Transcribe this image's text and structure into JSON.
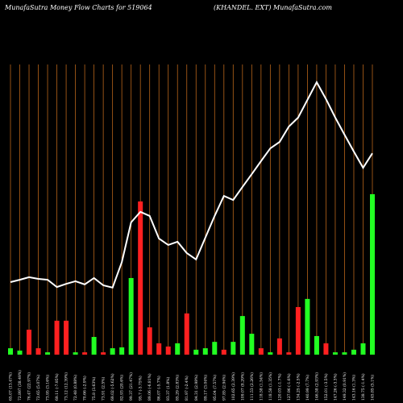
{
  "chart_data": {
    "type": "bar",
    "title": "MunafaSutra  Money Flow  Charts for 519064",
    "subtitle": "(KHANDEL. EXT) MunafaSutra.com",
    "categories": [
      "65.07 (13.47%)",
      "72.897 (38.49%)",
      "76.47 (22.97%)",
      "72.65 (5.07%)",
      "73.95 (3.16%)",
      "69.11 (-7.95%)",
      "73.12 (12.39%)",
      "72.48 (0.88%)",
      "70.66 (-2.9%)",
      "75.8 (3.63%)",
      "73.91 (2.5%)",
      "69.02 (-5.62%)",
      "82.93 (20.6%)",
      "99.37 (21.47%)",
      "95.7 (-3.75%)",
      "89.06 (-6.81%)",
      "86.07 (-5.7%)",
      "83.37 (1.8%)",
      "85.29 (2.83%)",
      "81.97 (-2.4%)",
      "84.31 (2.98%)",
      "89.17 (3.04%)",
      "95.04 (7.57%)",
      "97.85 (2.94%)",
      "102.65 (2.39%)",
      "109.07 (8.29%)",
      "111.53 (2.26%)",
      "118.58 (1.54%)",
      "118.58 (1.35%)",
      "120.03 (-1.7%)",
      "127.96 (-1.6%)",
      "134.25 (-2.5%)",
      "140.99 (7.7%)",
      "146.58 (2.93%)",
      "152.01 (-3.5%)",
      "147.26 (-3.3%)",
      "149.32 (0.91%)",
      "143.16 (1.3%)",
      "138.75 (-1.4%)",
      "145.85 (5.1%)"
    ],
    "series": [
      {
        "type": "bar",
        "values": [
          2.2,
          1.4,
          8.6,
          2.2,
          0.8,
          11.7,
          11.7,
          0.8,
          0.8,
          6.1,
          0.8,
          2.2,
          2.5,
          26.4,
          52.8,
          9.4,
          3.9,
          2.8,
          3.9,
          14.2,
          1.7,
          2.2,
          4.4,
          1.7,
          4.4,
          13.3,
          7.2,
          2.2,
          0.8,
          5.6,
          0.8,
          16.4,
          19.2,
          6.4,
          3.9,
          0.8,
          0.8,
          1.7,
          3.9,
          55.3
        ],
        "colors": [
          "#22ff22",
          "#22ff22",
          "#ff2020",
          "#ff2020",
          "#22ff22",
          "#ff2020",
          "#ff2020",
          "#22ff22",
          "#ff2020",
          "#22ff22",
          "#ff2020",
          "#22ff22",
          "#22ff22",
          "#22ff22",
          "#ff2020",
          "#ff2020",
          "#ff2020",
          "#ff2020",
          "#22ff22",
          "#ff2020",
          "#22ff22",
          "#22ff22",
          "#22ff22",
          "#ff2020",
          "#22ff22",
          "#22ff22",
          "#22ff22",
          "#ff2020",
          "#22ff22",
          "#ff2020",
          "#ff2020",
          "#ff2020",
          "#22ff22",
          "#22ff22",
          "#ff2020",
          "#22ff22",
          "#22ff22",
          "#22ff22",
          "#22ff22",
          "#22ff22"
        ]
      },
      {
        "type": "line",
        "color": "#ffffff",
        "values": [
          25,
          25.8,
          26.7,
          26.1,
          25.8,
          23.3,
          24.4,
          25.3,
          24.2,
          26.4,
          23.9,
          23.1,
          31.9,
          45.6,
          49.2,
          47.8,
          40,
          37.8,
          38.9,
          35,
          32.8,
          40.3,
          47.8,
          54.7,
          53.3,
          57.8,
          62.2,
          66.7,
          71.1,
          73.3,
          78.6,
          81.7,
          87.8,
          93.9,
          88.1,
          81.7,
          75.8,
          70,
          64.4,
          69.4
        ]
      }
    ],
    "ylim": [
      0,
      100
    ],
    "category_line_color": "#b8651a"
  }
}
